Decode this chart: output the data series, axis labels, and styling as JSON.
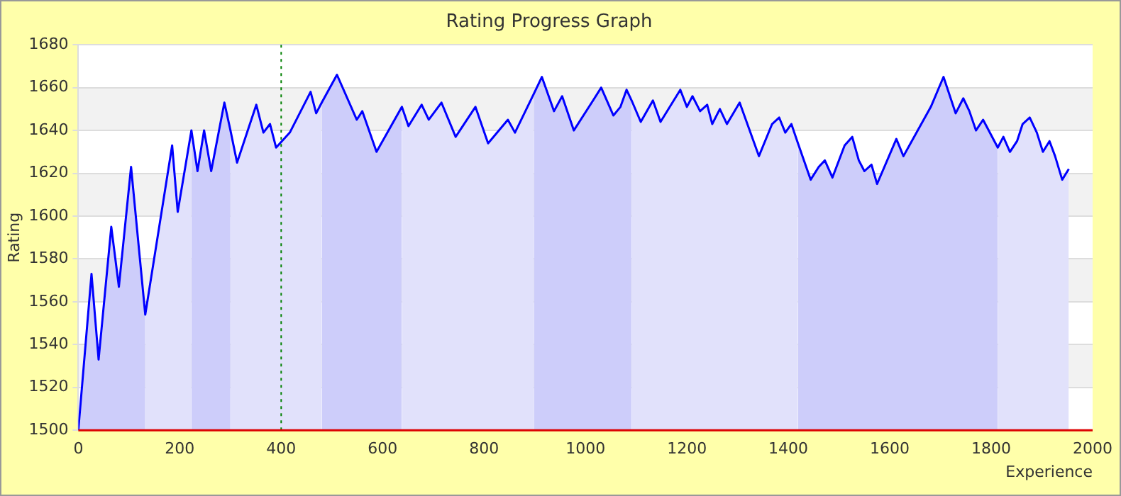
{
  "chart_data": {
    "type": "line",
    "title": "Rating Progress Graph",
    "xlabel": "Experience",
    "ylabel": "Rating",
    "xlim": [
      0,
      2000
    ],
    "xticks": [
      0,
      200,
      400,
      600,
      800,
      1000,
      1200,
      1400,
      1600,
      1800,
      2000
    ],
    "ylim": [
      1500,
      1680
    ],
    "yticks": [
      1500,
      1520,
      1540,
      1560,
      1580,
      1600,
      1620,
      1640,
      1660,
      1680
    ],
    "grid": "y",
    "legend": false,
    "marker": "none",
    "line_style": "solid",
    "series": [
      {
        "color": "#0000ff",
        "x": [
          0,
          26,
          40,
          65,
          80,
          104,
          132,
          185,
          196,
          223,
          235,
          248,
          262,
          288,
          300,
          313,
          351,
          365,
          378,
          390,
          417,
          458,
          469,
          480,
          510,
          549,
          560,
          588,
          638,
          651,
          677,
          691,
          716,
          744,
          783,
          808,
          847,
          861,
          898,
          914,
          938,
          954,
          977,
          1015,
          1031,
          1055,
          1069,
          1081,
          1091,
          1109,
          1133,
          1148,
          1187,
          1200,
          1211,
          1226,
          1240,
          1250,
          1265,
          1279,
          1304,
          1342,
          1368,
          1382,
          1394,
          1406,
          1419,
          1444,
          1460,
          1472,
          1487,
          1511,
          1526,
          1539,
          1550,
          1564,
          1575,
          1613,
          1627,
          1641,
          1681,
          1706,
          1730,
          1745,
          1757,
          1770,
          1784,
          1813,
          1824,
          1837,
          1851,
          1862,
          1876,
          1890,
          1902,
          1915,
          1926,
          1940,
          1953
        ],
        "values": [
          1500,
          1573,
          1533,
          1595,
          1567,
          1623,
          1554,
          1633,
          1602,
          1640,
          1621,
          1640,
          1621,
          1653,
          1640,
          1625,
          1652,
          1639,
          1643,
          1632,
          1639,
          1658,
          1648,
          1653,
          1666,
          1645,
          1649,
          1630,
          1651,
          1642,
          1652,
          1645,
          1653,
          1637,
          1651,
          1634,
          1645,
          1639,
          1657,
          1665,
          1649,
          1656,
          1640,
          1654,
          1660,
          1647,
          1651,
          1659,
          1654,
          1644,
          1654,
          1644,
          1659,
          1651,
          1656,
          1649,
          1652,
          1643,
          1650,
          1643,
          1653,
          1628,
          1643,
          1646,
          1639,
          1643,
          1634,
          1617,
          1623,
          1626,
          1618,
          1633,
          1637,
          1626,
          1621,
          1624,
          1615,
          1636,
          1628,
          1634,
          1651,
          1665,
          1648,
          1655,
          1649,
          1640,
          1645,
          1632,
          1637,
          1630,
          1635,
          1643,
          1646,
          1639,
          1630,
          1635,
          1628,
          1617,
          1622
        ]
      },
      {
        "type": "area",
        "color": "#cdcdfa",
        "x": [
          0,
          26,
          40,
          65,
          80,
          104,
          132
        ],
        "values": [
          1500,
          1573,
          1533,
          1595,
          1567,
          1623,
          1554
        ]
      },
      {
        "type": "area",
        "color": "#e1e1fb",
        "x": [
          132,
          185,
          196,
          223
        ],
        "values": [
          1554,
          1633,
          1602,
          1640
        ]
      },
      {
        "type": "area",
        "color": "#cdcdfa",
        "x": [
          223,
          235,
          248,
          262,
          288,
          300
        ],
        "values": [
          1640,
          1621,
          1640,
          1621,
          1653,
          1640
        ]
      },
      {
        "type": "area",
        "color": "#e1e1fb",
        "x": [
          300,
          313,
          351,
          365,
          378,
          390,
          417,
          458,
          469,
          480
        ],
        "values": [
          1640,
          1625,
          1652,
          1639,
          1643,
          1632,
          1639,
          1658,
          1648,
          1653
        ]
      },
      {
        "type": "area",
        "color": "#cdcdfa",
        "x": [
          480,
          510,
          549,
          560,
          588,
          638
        ],
        "values": [
          1653,
          1666,
          1645,
          1649,
          1630,
          1651
        ]
      },
      {
        "type": "area",
        "color": "#e1e1fb",
        "x": [
          638,
          651,
          677,
          691,
          716,
          744,
          783,
          808,
          847,
          861,
          898
        ],
        "values": [
          1651,
          1642,
          1652,
          1645,
          1653,
          1637,
          1651,
          1634,
          1645,
          1639,
          1657
        ]
      },
      {
        "type": "area",
        "color": "#cdcdfa",
        "x": [
          898,
          914,
          938,
          954,
          977,
          1015,
          1031,
          1055,
          1069,
          1081,
          1091
        ],
        "values": [
          1657,
          1665,
          1649,
          1656,
          1640,
          1654,
          1660,
          1647,
          1651,
          1659,
          1654
        ]
      },
      {
        "type": "area",
        "color": "#e1e1fb",
        "x": [
          1091,
          1109,
          1133,
          1148,
          1187,
          1200,
          1211,
          1226,
          1240,
          1250,
          1265,
          1279,
          1304,
          1342,
          1368,
          1382,
          1394,
          1406,
          1419
        ],
        "values": [
          1654,
          1644,
          1654,
          1644,
          1659,
          1651,
          1656,
          1649,
          1652,
          1643,
          1650,
          1643,
          1653,
          1628,
          1643,
          1646,
          1639,
          1643,
          1634
        ]
      },
      {
        "type": "area",
        "color": "#cdcdfa",
        "x": [
          1419,
          1444,
          1460,
          1472,
          1487,
          1511,
          1526,
          1539,
          1550,
          1564,
          1575,
          1613,
          1627,
          1641,
          1681,
          1706,
          1730,
          1745,
          1757,
          1770,
          1784,
          1813
        ],
        "values": [
          1634,
          1617,
          1623,
          1626,
          1618,
          1633,
          1637,
          1626,
          1621,
          1624,
          1615,
          1636,
          1628,
          1634,
          1651,
          1665,
          1648,
          1655,
          1649,
          1640,
          1645,
          1632
        ]
      },
      {
        "type": "area",
        "color": "#e1e1fb",
        "x": [
          1813,
          1824,
          1837,
          1851,
          1862,
          1876,
          1890,
          1902,
          1915,
          1926,
          1940,
          1953
        ],
        "values": [
          1632,
          1637,
          1630,
          1635,
          1643,
          1646,
          1639,
          1630,
          1635,
          1628,
          1617,
          1622
        ]
      }
    ],
    "ref_lines": [
      {
        "axis": "x",
        "value": 400,
        "color": "#008000",
        "line_style": "dotted"
      }
    ]
  }
}
